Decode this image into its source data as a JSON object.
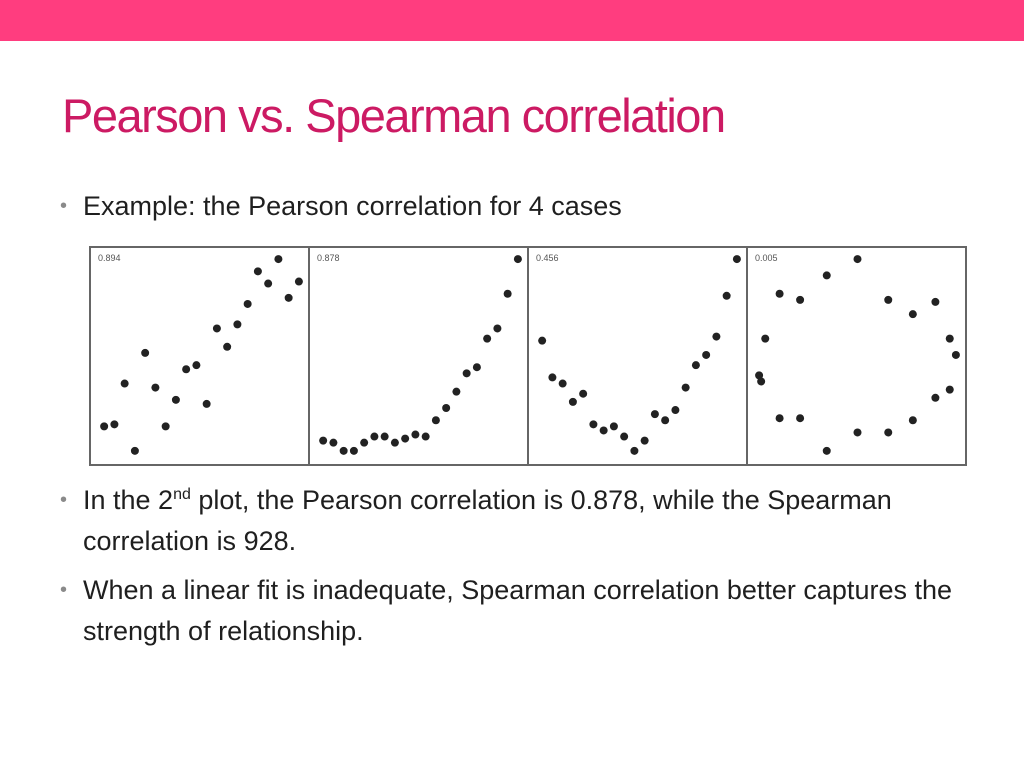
{
  "colors": {
    "accent": "#ff3d7f",
    "title": "#cc1a63",
    "border": "#666666",
    "marker": "#222222"
  },
  "title": "Pearson vs. Spearman correlation",
  "bullets": {
    "first": "Example: the Pearson correlation for 4 cases",
    "second": {
      "pre": "In the 2",
      "sup": "nd",
      "post": " plot, the Pearson correlation is 0.878, while the Spearman correlation is 928."
    },
    "third": "When a linear fit is inadequate, Spearman correlation better captures the strength of relationship."
  },
  "chart_data": [
    {
      "type": "scatter",
      "annotation": "0.894",
      "xlim": [
        0,
        1
      ],
      "ylim": [
        0,
        1
      ],
      "points": [
        [
          0.03,
          0.16
        ],
        [
          0.08,
          0.17
        ],
        [
          0.13,
          0.37
        ],
        [
          0.18,
          0.04
        ],
        [
          0.23,
          0.52
        ],
        [
          0.28,
          0.35
        ],
        [
          0.33,
          0.16
        ],
        [
          0.38,
          0.29
        ],
        [
          0.43,
          0.44
        ],
        [
          0.48,
          0.46
        ],
        [
          0.53,
          0.27
        ],
        [
          0.58,
          0.64
        ],
        [
          0.63,
          0.55
        ],
        [
          0.68,
          0.66
        ],
        [
          0.73,
          0.76
        ],
        [
          0.78,
          0.92
        ],
        [
          0.83,
          0.86
        ],
        [
          0.88,
          0.98
        ],
        [
          0.93,
          0.79
        ],
        [
          0.98,
          0.87
        ]
      ]
    },
    {
      "type": "scatter",
      "annotation": "0.878",
      "xlim": [
        0,
        1
      ],
      "ylim": [
        0,
        1
      ],
      "points": [
        [
          0.03,
          0.09
        ],
        [
          0.08,
          0.08
        ],
        [
          0.13,
          0.04
        ],
        [
          0.18,
          0.04
        ],
        [
          0.23,
          0.08
        ],
        [
          0.28,
          0.11
        ],
        [
          0.33,
          0.11
        ],
        [
          0.38,
          0.08
        ],
        [
          0.43,
          0.1
        ],
        [
          0.48,
          0.12
        ],
        [
          0.53,
          0.11
        ],
        [
          0.58,
          0.19
        ],
        [
          0.63,
          0.25
        ],
        [
          0.68,
          0.33
        ],
        [
          0.73,
          0.42
        ],
        [
          0.78,
          0.45
        ],
        [
          0.83,
          0.59
        ],
        [
          0.88,
          0.64
        ],
        [
          0.93,
          0.81
        ],
        [
          0.98,
          0.98
        ]
      ]
    },
    {
      "type": "scatter",
      "annotation": "0.456",
      "xlim": [
        0,
        1
      ],
      "ylim": [
        0,
        1
      ],
      "points": [
        [
          0.03,
          0.58
        ],
        [
          0.08,
          0.4
        ],
        [
          0.13,
          0.37
        ],
        [
          0.18,
          0.28
        ],
        [
          0.23,
          0.32
        ],
        [
          0.28,
          0.17
        ],
        [
          0.33,
          0.14
        ],
        [
          0.38,
          0.16
        ],
        [
          0.43,
          0.11
        ],
        [
          0.48,
          0.04
        ],
        [
          0.53,
          0.09
        ],
        [
          0.58,
          0.22
        ],
        [
          0.63,
          0.19
        ],
        [
          0.68,
          0.24
        ],
        [
          0.73,
          0.35
        ],
        [
          0.78,
          0.46
        ],
        [
          0.83,
          0.51
        ],
        [
          0.88,
          0.6
        ],
        [
          0.93,
          0.8
        ],
        [
          0.98,
          0.98
        ]
      ]
    },
    {
      "type": "scatter",
      "annotation": "0.005",
      "xlim": [
        0,
        1
      ],
      "ylim": [
        0,
        1
      ],
      "points": [
        [
          0.02,
          0.41
        ],
        [
          0.03,
          0.38
        ],
        [
          0.05,
          0.59
        ],
        [
          0.12,
          0.81
        ],
        [
          0.12,
          0.2
        ],
        [
          0.22,
          0.2
        ],
        [
          0.22,
          0.78
        ],
        [
          0.35,
          0.04
        ],
        [
          0.35,
          0.9
        ],
        [
          0.5,
          0.13
        ],
        [
          0.5,
          0.98
        ],
        [
          0.65,
          0.13
        ],
        [
          0.65,
          0.78
        ],
        [
          0.77,
          0.71
        ],
        [
          0.77,
          0.19
        ],
        [
          0.88,
          0.77
        ],
        [
          0.88,
          0.3
        ],
        [
          0.95,
          0.34
        ],
        [
          0.95,
          0.59
        ],
        [
          0.98,
          0.51
        ]
      ]
    }
  ]
}
